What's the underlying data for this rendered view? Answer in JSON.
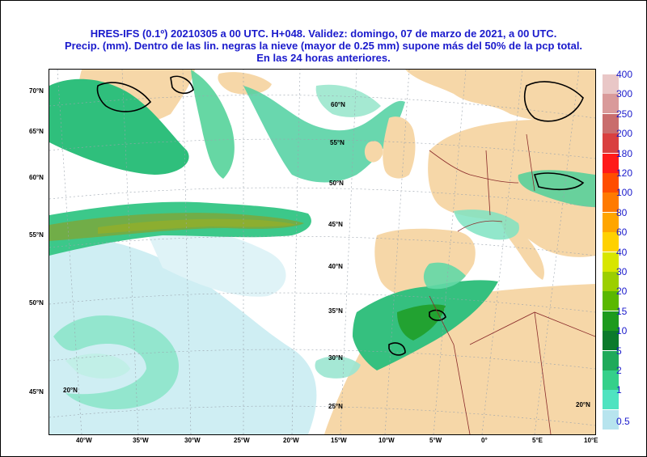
{
  "title": {
    "line1": "HRES-IFS (0.1º) 20210305 a 00 UTC.  H+048. Validez: domingo, 07 de marzo de 2021,  a  00 UTC.",
    "line2": "Precip. (mm). Dentro de las lin. negras la nieve (mayor de 0.25 mm) supone más del 50% de la pcp total.",
    "line3": "En las 24 horas anteriores."
  },
  "colors": {
    "land": "#f6d7a8",
    "sea": "#ffffff",
    "border": "#8a2b2b",
    "grid": "#9aa3ad"
  },
  "left_lat_labels": [
    "70°N",
    "65°N",
    "60°N",
    "55°N",
    "50°N",
    "45°N"
  ],
  "bottom_lon_labels": [
    "40°W",
    "35°W",
    "30°W",
    "25°W",
    "20°W",
    "15°W",
    "10°W",
    "5°W",
    "0°",
    "5°E",
    "10°E"
  ],
  "inner_lat_labels": [
    "60°N",
    "55°N",
    "50°N",
    "45°N",
    "40°N",
    "35°N",
    "30°N",
    "25°N",
    "20°N",
    "20°N"
  ],
  "legend": {
    "labels": [
      "400",
      "300",
      "250",
      "200",
      "180",
      "120",
      "100",
      "80",
      "60",
      "40",
      "30",
      "20",
      "15",
      "10",
      "5",
      "2",
      "1",
      "0.5"
    ],
    "colors": [
      "#e9c7c7",
      "#d99a9a",
      "#c96d6d",
      "#d94040",
      "#ff1a1a",
      "#ff4d00",
      "#ff7a00",
      "#ffa500",
      "#ffd100",
      "#d8e600",
      "#9ccf00",
      "#5ab800",
      "#1e9a1e",
      "#0b7a2b",
      "#1faa5a",
      "#35d08a",
      "#4fe3c0",
      "#b7e4ee"
    ]
  }
}
